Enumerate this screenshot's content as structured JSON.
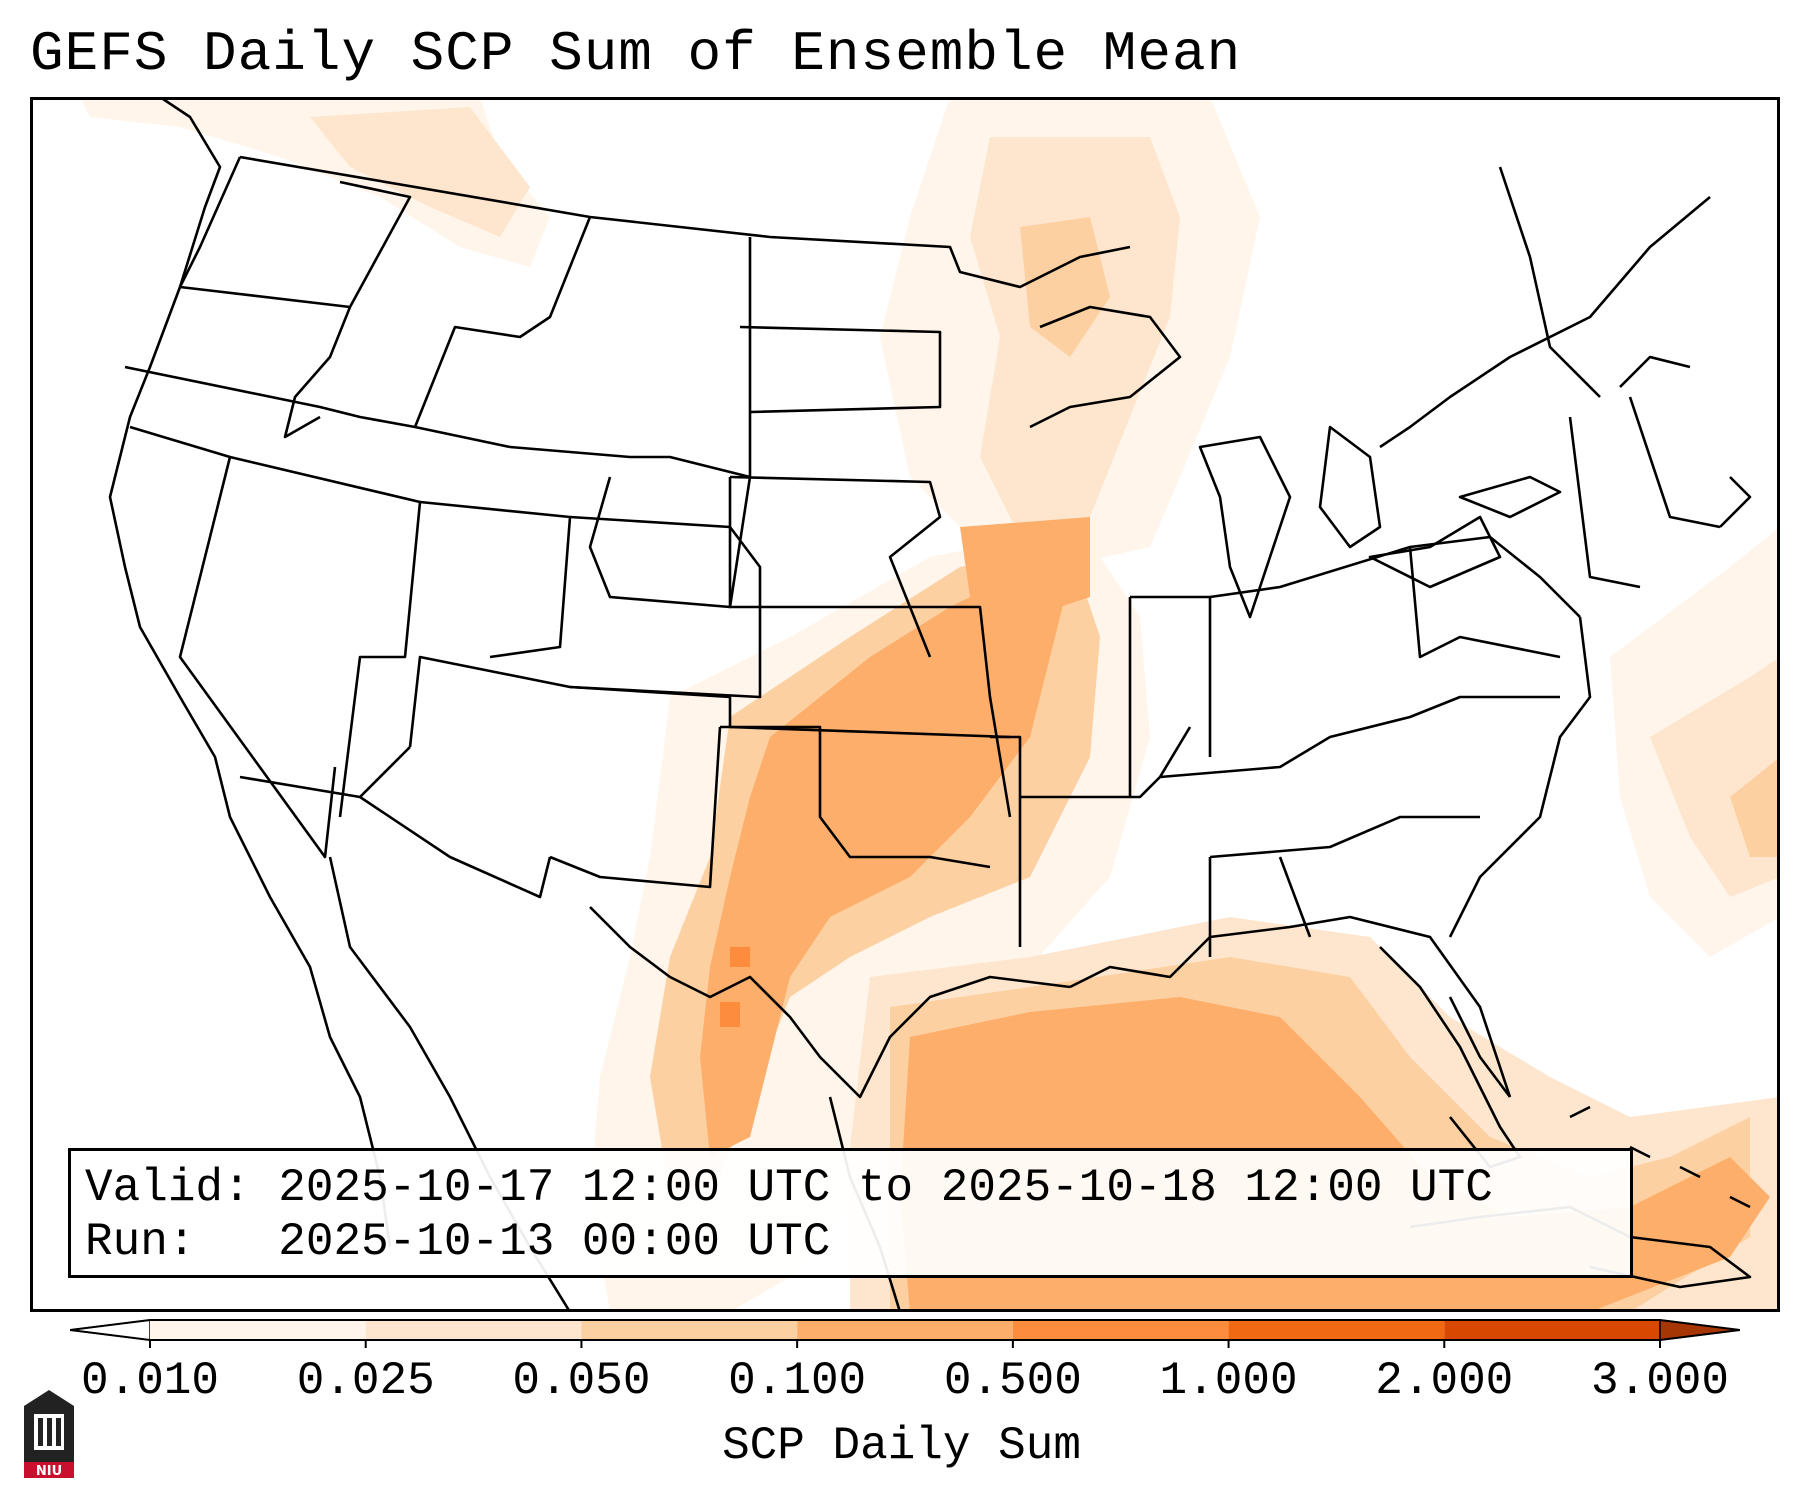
{
  "title": "GEFS Daily SCP Sum of Ensemble Mean",
  "info": {
    "valid_label": "Valid:",
    "valid_value": "2025-10-17 12:00 UTC to 2025-10-18 12:00 UTC",
    "run_label": "Run:",
    "run_value": "2025-10-13 00:00 UTC"
  },
  "colorbar": {
    "label": "SCP Daily Sum",
    "ticks": [
      "0.010",
      "0.025",
      "0.050",
      "0.100",
      "0.500",
      "1.000",
      "2.000",
      "3.000"
    ],
    "colors": [
      "#fff5eb",
      "#fee6ce",
      "#fdd0a2",
      "#fdae6b",
      "#fd8d3c",
      "#f16913",
      "#d94801"
    ],
    "over_color": "#a63603",
    "under_color": "#ffffff"
  },
  "logo": {
    "text": "NIU",
    "colors": {
      "body": "#222222",
      "accent": "#c8102e"
    }
  },
  "map_colors": {
    "lightest": "#fff5eb",
    "light": "#fee6ce",
    "medium": "#fdd0a2",
    "strong": "#fdae6b",
    "peak": "#fd8d3c",
    "border": "#000000"
  }
}
